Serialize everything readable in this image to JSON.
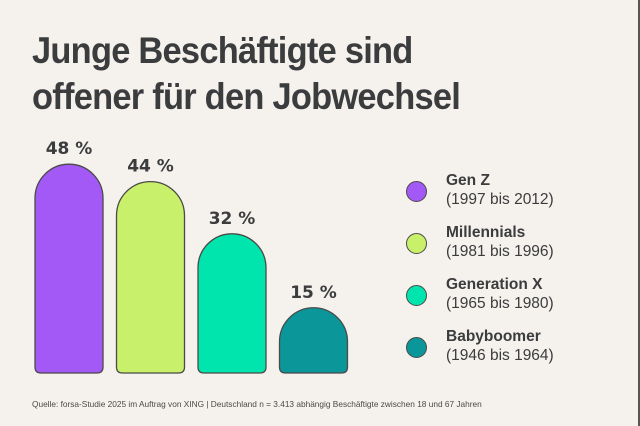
{
  "chart_data": {
    "type": "bar",
    "title": "Junge Beschäftigte sind offener für den Jobwechsel",
    "title_lines": [
      "Junge Beschäftigte sind",
      "offener für den Jobwechsel"
    ],
    "categories": [
      "Gen Z",
      "Millennials",
      "Generation X",
      "Babyboomer"
    ],
    "values": [
      48,
      44,
      32,
      15
    ],
    "value_labels": [
      "48 %",
      "44 %",
      "32 %",
      "15 %"
    ],
    "unit": "%",
    "colors": [
      "#a259f5",
      "#c9f06b",
      "#00e5ad",
      "#0b9699"
    ],
    "xlabel": "",
    "ylabel": "",
    "ylim": [
      0,
      50
    ],
    "grid": false,
    "legend_position": "right",
    "legend": [
      {
        "name": "Gen Z",
        "years": "(1997 bis 2012)",
        "color": "#a259f5"
      },
      {
        "name": "Millennials",
        "years": "(1981 bis 1996)",
        "color": "#c9f06b"
      },
      {
        "name": "Generation X",
        "years": "(1965 bis 1980)",
        "color": "#00e5ad"
      },
      {
        "name": "Babyboomer",
        "years": "(1946 bis 1964)",
        "color": "#0b9699"
      }
    ],
    "source": "Quelle: forsa-Studie 2025 im Auftrag von XING | Deutschland n = 3.413 abhängig Beschäftigte zwischen 18 und 67 Jahren"
  }
}
